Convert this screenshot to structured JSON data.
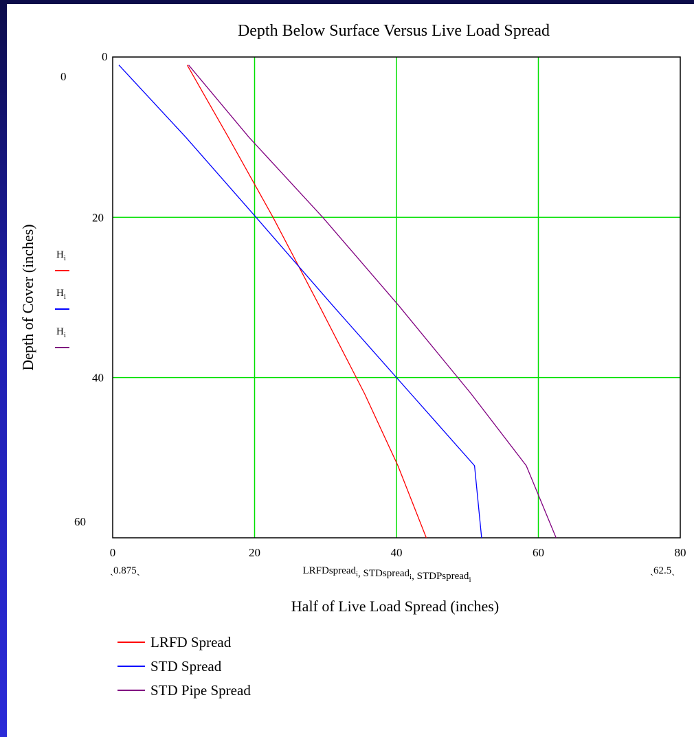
{
  "chart_data": {
    "type": "line",
    "title": "Depth Below Surface Versus Live Load Spread",
    "xlabel": "Half of Live Load Spread (inches)",
    "ylabel": "Depth of Cover (inches)",
    "xlim": [
      0,
      80
    ],
    "ylim": [
      0,
      60
    ],
    "y_inverted": true,
    "grid": true,
    "grid_color": "#00e000",
    "x_ticks": [
      "0",
      "20",
      "40",
      "60",
      "80"
    ],
    "y_ticks": [
      "0",
      "20",
      "40",
      "60"
    ],
    "y_top_corner_tick": "0",
    "x_range_low_label": "0.875",
    "x_range_high_label": "62.5",
    "x_expression": {
      "parts": [
        {
          "text": "LRFDspread",
          "sub": "i"
        },
        {
          "text": ", STDspread",
          "sub": "i"
        },
        {
          "text": ", STDPspread",
          "sub": "i"
        }
      ]
    },
    "y_trace_labels": [
      {
        "text": "H",
        "sub": "i",
        "color": "#ff0000"
      },
      {
        "text": "H",
        "sub": "i",
        "color": "#0000ff"
      },
      {
        "text": "H",
        "sub": "i",
        "color": "#800080"
      }
    ],
    "series": [
      {
        "name": "LRFD Spread",
        "color": "#ff0000",
        "points": [
          [
            10.5,
            1
          ],
          [
            16.3,
            10
          ],
          [
            22.6,
            20
          ],
          [
            29.1,
            31
          ],
          [
            35.5,
            42
          ],
          [
            40.2,
            51
          ],
          [
            44.2,
            60
          ]
        ]
      },
      {
        "name": "STD Spread",
        "color": "#0000ff",
        "points": [
          [
            0.875,
            1
          ],
          [
            10.3,
            10
          ],
          [
            20.2,
            20
          ],
          [
            31.0,
            31
          ],
          [
            42.0,
            42
          ],
          [
            51.0,
            51
          ],
          [
            52.0,
            60
          ]
        ]
      },
      {
        "name": "STD Pipe Spread",
        "color": "#800080",
        "points": [
          [
            10.7,
            1
          ],
          [
            19.2,
            10
          ],
          [
            29.6,
            20
          ],
          [
            40.3,
            31
          ],
          [
            50.5,
            42
          ],
          [
            58.3,
            51
          ],
          [
            62.5,
            60
          ]
        ]
      }
    ]
  }
}
